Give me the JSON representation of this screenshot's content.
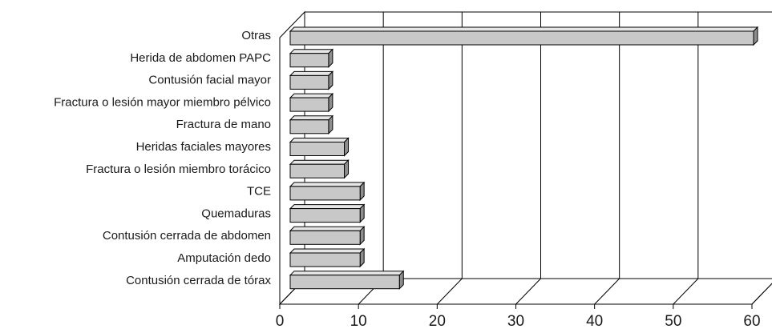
{
  "chart_data": {
    "type": "bar",
    "orientation": "horizontal",
    "style": "3d",
    "categories": [
      "Otras",
      "Herida de abdomen PAPC",
      "Contusión facial mayor",
      "Fractura o lesión mayor miembro pélvico",
      "Fractura de mano",
      "Heridas faciales mayores",
      "Fractura o lesión miembro torácico",
      "TCE",
      "Quemaduras",
      "Contusión cerrada de abdomen",
      "Amputación dedo",
      "Contusión cerrada de tórax"
    ],
    "values": [
      60,
      6,
      6,
      6,
      6,
      8,
      8,
      10,
      10,
      10,
      10,
      15
    ],
    "xlim": [
      0,
      60
    ],
    "x_ticks": [
      "0",
      "10",
      "20",
      "30",
      "40",
      "50",
      "60"
    ],
    "grid": true,
    "legend": "none",
    "title": "",
    "xlabel": "",
    "ylabel": "",
    "colors": {
      "bar_front": "#c8c8c8",
      "bar_top": "#e6e6e6",
      "bar_side": "#8e8e8e",
      "line": "#000000"
    }
  }
}
